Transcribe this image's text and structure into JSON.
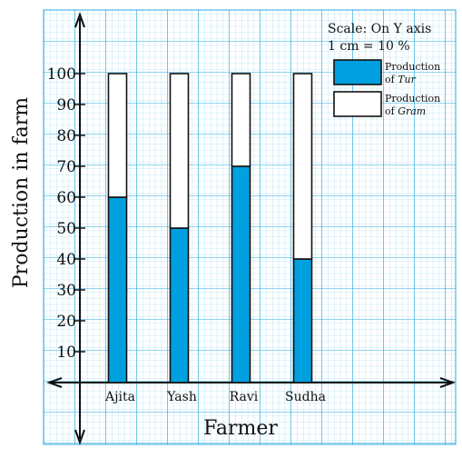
{
  "chart_data": {
    "type": "bar",
    "stacked": true,
    "ylabel": "Production in farm",
    "xlabel": "Farmer",
    "categories": [
      "Ajita",
      "Yash",
      "Ravi",
      "Sudha"
    ],
    "series": [
      {
        "name_prefix": "Production",
        "name_mid": "of",
        "name_item": "Tur",
        "values": [
          60,
          50,
          70,
          40
        ],
        "color": "#00a0e0"
      },
      {
        "name_prefix": "Production",
        "name_mid": "of",
        "name_item": "Gram",
        "values": [
          40,
          50,
          30,
          60
        ],
        "color": "#ffffff"
      }
    ],
    "yticks": [
      "10",
      "20",
      "30",
      "40",
      "50",
      "60",
      "70",
      "80",
      "90",
      "100"
    ],
    "ylim": [
      0,
      100
    ],
    "scale_line1": "Scale: On Y axis",
    "scale_line2": "1 cm = 10 %",
    "grid": true,
    "grid_color": "#4ab8e8",
    "legend_position": "top-right"
  }
}
